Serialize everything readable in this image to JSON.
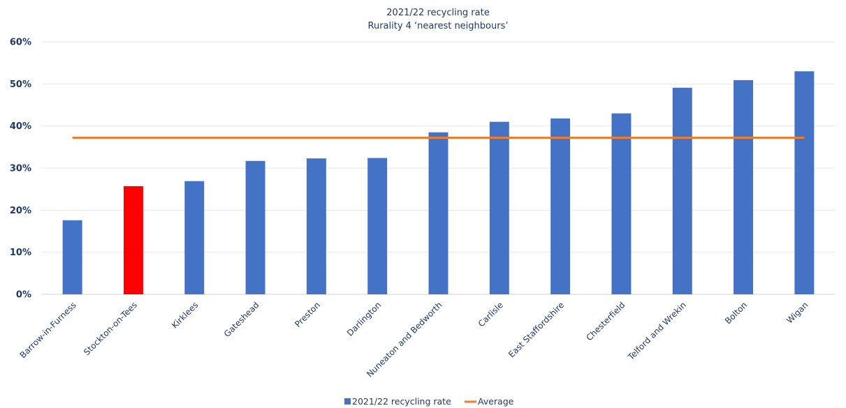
{
  "chart_data": {
    "type": "bar",
    "title": "2021/22 recycling rate",
    "subtitle": "Rurality 4 ‘nearest neighbours’",
    "categories": [
      "Barrow-in-Furness",
      "Stockton-on-Tees",
      "Kirklees",
      "Gateshead",
      "Preston",
      "Darlington",
      "Nuneaton and Bedworth",
      "Carlisle",
      "East Staffordshire",
      "Chesterfield",
      "Telford and Wrekin",
      "Bolton",
      "Wigan"
    ],
    "series": [
      {
        "name": "2021/22 recycling rate",
        "type": "bar",
        "color": "#4472c4",
        "highlight": {
          "category": "Stockton-on-Tees",
          "color": "#ff0000"
        },
        "values": [
          17.6,
          25.7,
          26.9,
          31.7,
          32.3,
          32.4,
          38.5,
          41.0,
          41.8,
          43.0,
          49.1,
          50.9,
          53.0
        ]
      },
      {
        "name": "Average",
        "type": "line",
        "color": "#ed7d31",
        "values": [
          37.2,
          37.2,
          37.2,
          37.2,
          37.2,
          37.2,
          37.2,
          37.2,
          37.2,
          37.2,
          37.2,
          37.2,
          37.2
        ]
      }
    ],
    "yticks": [
      "0%",
      "10%",
      "20%",
      "30%",
      "40%",
      "50%",
      "60%"
    ],
    "ylim": [
      0,
      60
    ],
    "grid": true,
    "legend_position": "bottom"
  }
}
